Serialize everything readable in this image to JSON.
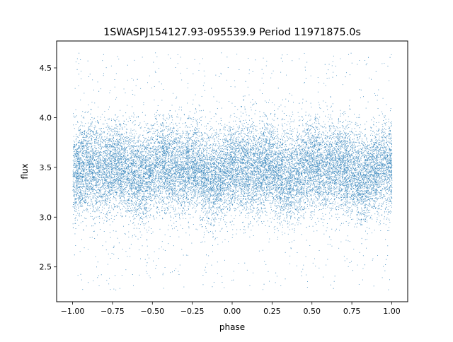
{
  "chart_data": {
    "type": "scatter",
    "title": "1SWASPJ154127.93-095539.9 Period 11971875.0s",
    "xlabel": "phase",
    "ylabel": "flux",
    "xlim": [
      -1.1,
      1.1
    ],
    "ylim": [
      2.15,
      4.77
    ],
    "xticks": [
      -1.0,
      -0.75,
      -0.5,
      -0.25,
      0.0,
      0.25,
      0.5,
      0.75,
      1.0
    ],
    "xtick_labels": [
      "−1.00",
      "−0.75",
      "−0.50",
      "−0.25",
      "0.00",
      "0.25",
      "0.50",
      "0.75",
      "1.00"
    ],
    "yticks": [
      2.5,
      3.0,
      3.5,
      4.0,
      4.5
    ],
    "ytick_labels": [
      "2.5",
      "3.0",
      "3.5",
      "4.0",
      "4.5"
    ],
    "grid": false,
    "legend": "none",
    "series": [
      {
        "color": "#1f77b4",
        "marker": "dot",
        "x_range": [
          -1.0,
          1.0
        ],
        "y_range": [
          2.27,
          4.66
        ],
        "y_typical": [
          3.0,
          3.9
        ],
        "y_center": 3.47,
        "point_count_estimate": 20000
      }
    ]
  }
}
